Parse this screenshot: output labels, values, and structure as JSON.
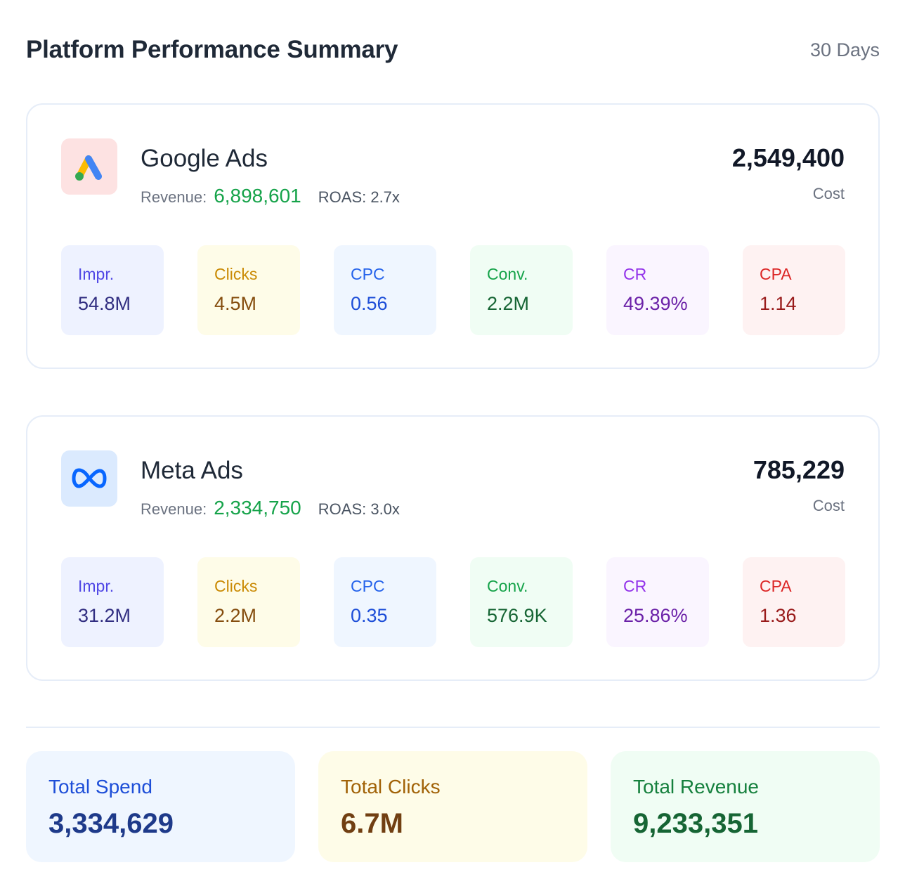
{
  "header": {
    "title": "Platform Performance Summary",
    "period": "30 Days"
  },
  "platforms": [
    {
      "name": "Google Ads",
      "icon": "google-ads-logo-icon",
      "revenue_label": "Revenue:",
      "revenue": "6,898,601",
      "roas": "ROAS: 2.7x",
      "cost": "2,549,400",
      "cost_label": "Cost",
      "metrics": {
        "impr": {
          "label": "Impr.",
          "value": "54.8M"
        },
        "clicks": {
          "label": "Clicks",
          "value": "4.5M"
        },
        "cpc": {
          "label": "CPC",
          "value": "0.56"
        },
        "conv": {
          "label": "Conv.",
          "value": "2.2M"
        },
        "cr": {
          "label": "CR",
          "value": "49.39%"
        },
        "cpa": {
          "label": "CPA",
          "value": "1.14"
        }
      }
    },
    {
      "name": "Meta Ads",
      "icon": "meta-logo-icon",
      "revenue_label": "Revenue:",
      "revenue": "2,334,750",
      "roas": "ROAS: 3.0x",
      "cost": "785,229",
      "cost_label": "Cost",
      "metrics": {
        "impr": {
          "label": "Impr.",
          "value": "31.2M"
        },
        "clicks": {
          "label": "Clicks",
          "value": "2.2M"
        },
        "cpc": {
          "label": "CPC",
          "value": "0.35"
        },
        "conv": {
          "label": "Conv.",
          "value": "576.9K"
        },
        "cr": {
          "label": "CR",
          "value": "25.86%"
        },
        "cpa": {
          "label": "CPA",
          "value": "1.36"
        }
      }
    }
  ],
  "totals": {
    "spend": {
      "label": "Total Spend",
      "value": "3,334,629"
    },
    "clicks": {
      "label": "Total Clicks",
      "value": "6.7M"
    },
    "revenue": {
      "label": "Total Revenue",
      "value": "9,233,351"
    }
  },
  "colors": {
    "revenue_green": "#16a34a",
    "google_logo_bg": "#fde2e2",
    "meta_logo_bg": "#dbeafe",
    "meta_blue": "#0866ff"
  }
}
